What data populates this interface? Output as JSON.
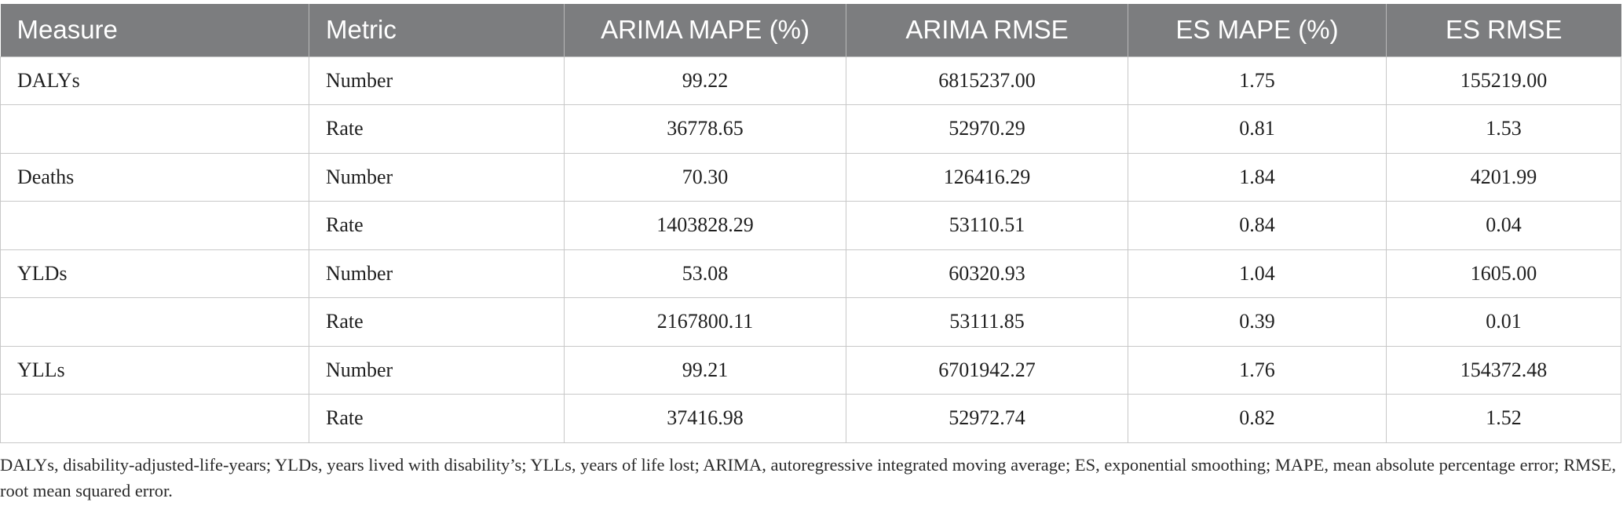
{
  "table": {
    "headers": [
      "Measure",
      "Metric",
      "ARIMA MAPE (%)",
      "ARIMA RMSE",
      "ES MAPE (%)",
      "ES RMSE"
    ],
    "rows": [
      [
        "DALYs",
        "Number",
        "99.22",
        "6815237.00",
        "1.75",
        "155219.00"
      ],
      [
        "",
        "Rate",
        "36778.65",
        "52970.29",
        "0.81",
        "1.53"
      ],
      [
        "Deaths",
        "Number",
        "70.30",
        "126416.29",
        "1.84",
        "4201.99"
      ],
      [
        "",
        "Rate",
        "1403828.29",
        "53110.51",
        "0.84",
        "0.04"
      ],
      [
        "YLDs",
        "Number",
        "53.08",
        "60320.93",
        "1.04",
        "1605.00"
      ],
      [
        "",
        "Rate",
        "2167800.11",
        "53111.85",
        "0.39",
        "0.01"
      ],
      [
        "YLLs",
        "Number",
        "99.21",
        "6701942.27",
        "1.76",
        "154372.48"
      ],
      [
        "",
        "Rate",
        "37416.98",
        "52972.74",
        "0.82",
        "1.52"
      ]
    ]
  },
  "footnote": "DALYs, disability-adjusted-life-years; YLDs, years lived with disability’s; YLLs, years of life lost; ARIMA, autoregressive integrated moving average; ES, exponential smoothing; MAPE, mean absolute percentage error; RMSE, root mean squared error."
}
